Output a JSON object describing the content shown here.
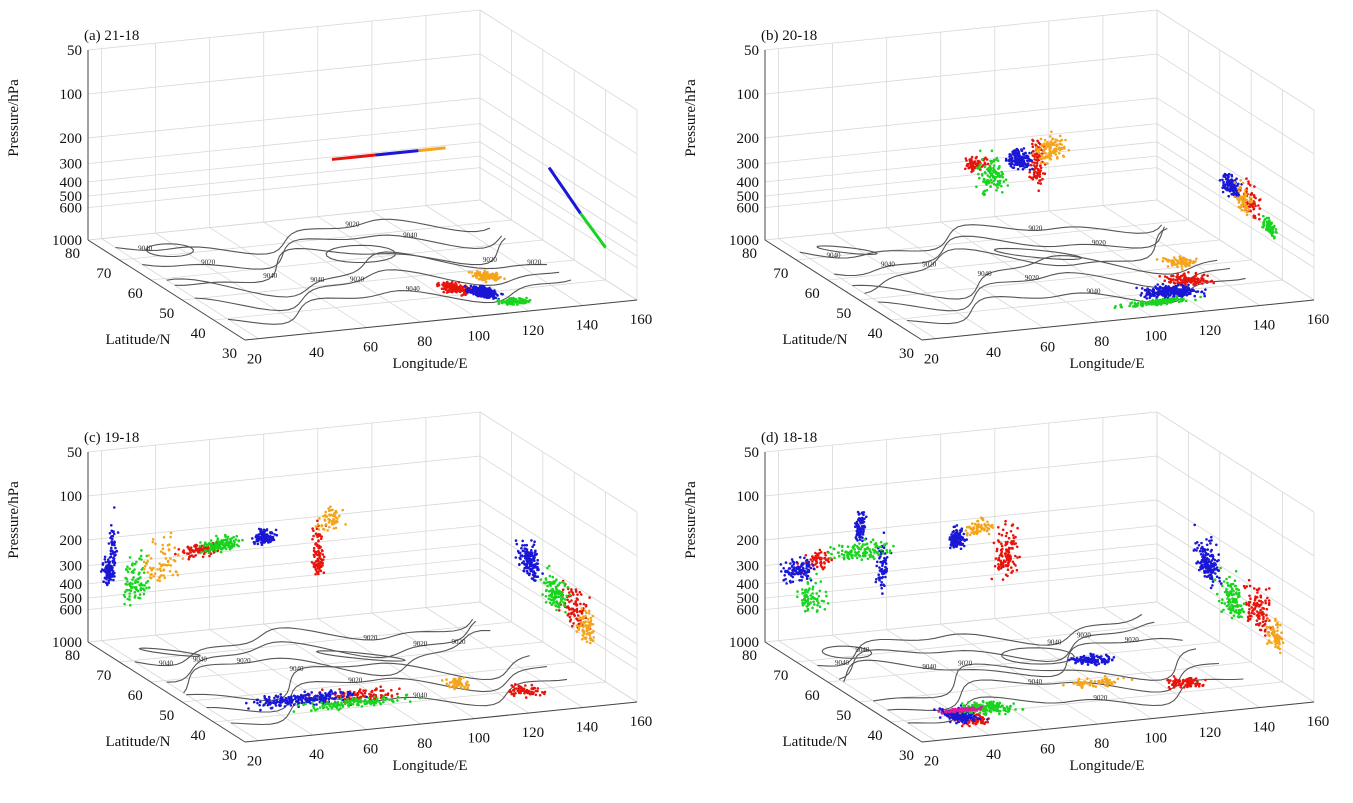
{
  "figure": {
    "title": ""
  },
  "chart_data": [
    {
      "type": "scatter",
      "title": "(a) 21-18",
      "xlabel": "Longitude/E",
      "ylabel": "Latitude/N",
      "zlabel": "Pressure/hPa",
      "xticks": [
        "20",
        "40",
        "60",
        "80",
        "100",
        "120",
        "140",
        "160"
      ],
      "yticks": [
        "80",
        "70",
        "60",
        "50",
        "40",
        "30"
      ],
      "zticks": [
        "50",
        "100",
        "200",
        "300",
        "400",
        "500",
        "600",
        "1000"
      ],
      "xlim": [
        15,
        160
      ],
      "ylim": [
        30,
        80
      ],
      "zlim": [
        1000,
        50
      ],
      "contour_labels": [
        "9040",
        "9020",
        "9040",
        "9040",
        "9020",
        "9040",
        "9020",
        "9040",
        "9020",
        "9020"
      ],
      "series": [
        {
          "name": "red",
          "color": "#e8140c",
          "clusters": [
            {
              "lon": 108,
              "lat": 43,
              "p": 1000,
              "n": 160,
              "spread": [
                6,
                4,
                0
              ]
            }
          ],
          "lines": [
            {
              "from": [
                82,
                60,
                200
              ],
              "to": [
                98,
                60,
                200
              ]
            }
          ]
        },
        {
          "name": "blue",
          "color": "#1a17d6",
          "clusters": [
            {
              "lon": 115,
              "lat": 40,
              "p": 1000,
              "n": 260,
              "spread": [
                6,
                4,
                0
              ]
            }
          ],
          "lines": [
            {
              "from": [
                98,
                60,
                200
              ],
              "to": [
                114,
                60,
                200
              ]
            },
            {
              "from": [
                160,
                58,
                300
              ],
              "to": [
                160,
                48,
                450
              ]
            }
          ]
        },
        {
          "name": "green",
          "color": "#18d41e",
          "clusters": [
            {
              "lon": 120,
              "lat": 35,
              "p": 1000,
              "n": 120,
              "spread": [
                7,
                2,
                0
              ]
            }
          ],
          "lines": [
            {
              "from": [
                160,
                48,
                450
              ],
              "to": [
                160,
                40,
                600
              ]
            }
          ]
        },
        {
          "name": "orange",
          "color": "#f4a51c",
          "clusters": [
            {
              "lon": 124,
              "lat": 47,
              "p": 1000,
              "n": 130,
              "spread": [
                6,
                3,
                0
              ]
            }
          ],
          "lines": [
            {
              "from": [
                114,
                60,
                200
              ],
              "to": [
                124,
                60,
                200
              ]
            }
          ]
        }
      ]
    },
    {
      "type": "scatter",
      "title": "(b) 20-18",
      "xlabel": "Longitude/E",
      "ylabel": "Latitude/N",
      "zlabel": "Pressure/hPa",
      "xticks": [
        "20",
        "40",
        "60",
        "80",
        "100",
        "120",
        "140",
        "160"
      ],
      "yticks": [
        "80",
        "70",
        "60",
        "50",
        "40",
        "30"
      ],
      "zticks": [
        "50",
        "100",
        "200",
        "300",
        "400",
        "500",
        "600",
        "1000"
      ],
      "xlim": [
        15,
        160
      ],
      "ylim": [
        30,
        80
      ],
      "zlim": [
        1000,
        50
      ],
      "contour_labels": [
        "9040",
        "9040",
        "9020",
        "9040",
        "9020",
        "9040",
        "9020",
        "9020"
      ],
      "series": [
        {
          "name": "red",
          "color": "#e8140c",
          "clusters": [
            {
              "lon": 72,
              "lat": 62,
              "p": 220,
              "n": 80,
              "spread": [
                6,
                2,
                30
              ]
            },
            {
              "lon": 95,
              "lat": 62,
              "p": 250,
              "n": 90,
              "spread": [
                3,
                2,
                150
              ]
            },
            {
              "lon": 130,
              "lat": 44,
              "p": 1000,
              "n": 120,
              "spread": [
                10,
                4,
                0
              ]
            },
            {
              "lon": 160,
              "lat": 50,
              "p": 400,
              "n": 70,
              "spread": [
                2,
                4,
                150
              ]
            }
          ]
        },
        {
          "name": "blue",
          "color": "#1a17d6",
          "clusters": [
            {
              "lon": 88,
              "lat": 62,
              "p": 220,
              "n": 160,
              "spread": [
                6,
                2,
                50
              ]
            },
            {
              "lon": 118,
              "lat": 40,
              "p": 1000,
              "n": 240,
              "spread": [
                14,
                4,
                0
              ]
            },
            {
              "lon": 160,
              "lat": 56,
              "p": 380,
              "n": 120,
              "spread": [
                2,
                4,
                90
              ]
            }
          ]
        },
        {
          "name": "green",
          "color": "#18d41e",
          "clusters": [
            {
              "lon": 78,
              "lat": 62,
              "p": 280,
              "n": 110,
              "spread": [
                8,
                2,
                120
              ]
            },
            {
              "lon": 108,
              "lat": 36,
              "p": 1000,
              "n": 120,
              "spread": [
                18,
                2,
                0
              ]
            },
            {
              "lon": 160,
              "lat": 44,
              "p": 500,
              "n": 70,
              "spread": [
                2,
                3,
                80
              ]
            }
          ]
        },
        {
          "name": "orange",
          "color": "#f4a51c",
          "clusters": [
            {
              "lon": 100,
              "lat": 62,
              "p": 200,
              "n": 110,
              "spread": [
                8,
                2,
                60
              ]
            },
            {
              "lon": 136,
              "lat": 52,
              "p": 1000,
              "n": 80,
              "spread": [
                8,
                4,
                0
              ]
            },
            {
              "lon": 160,
              "lat": 52,
              "p": 420,
              "n": 60,
              "spread": [
                2,
                4,
                120
              ]
            }
          ]
        }
      ]
    },
    {
      "type": "scatter",
      "title": "(c) 19-18",
      "xlabel": "Longitude/E",
      "ylabel": "Latitude/N",
      "zlabel": "Pressure/hPa",
      "xticks": [
        "20",
        "40",
        "60",
        "80",
        "100",
        "120",
        "140",
        "160"
      ],
      "yticks": [
        "80",
        "70",
        "60",
        "50",
        "40",
        "30"
      ],
      "zticks": [
        "50",
        "100",
        "200",
        "300",
        "400",
        "500",
        "600",
        "1000"
      ],
      "xlim": [
        15,
        160
      ],
      "ylim": [
        30,
        80
      ],
      "zlim": [
        1000,
        50
      ],
      "contour_labels": [
        "9040",
        "9040",
        "9020",
        "9040",
        "9020",
        "9040",
        "9020",
        "9020",
        "9020"
      ],
      "series": [
        {
          "name": "red",
          "color": "#e8140c",
          "clusters": [
            {
              "lon": 55,
              "lat": 78,
              "p": 260,
              "n": 110,
              "spread": [
                12,
                1,
                40
              ]
            },
            {
              "lon": 98,
              "lat": 78,
              "p": 350,
              "n": 90,
              "spread": [
                3,
                1,
                200
              ]
            },
            {
              "lon": 75,
              "lat": 45,
              "p": 1000,
              "n": 110,
              "spread": [
                20,
                5,
                0
              ]
            },
            {
              "lon": 130,
              "lat": 40,
              "p": 1000,
              "n": 70,
              "spread": [
                8,
                4,
                0
              ]
            },
            {
              "lon": 160,
              "lat": 50,
              "p": 420,
              "n": 90,
              "spread": [
                2,
                6,
                200
              ]
            }
          ]
        },
        {
          "name": "blue",
          "color": "#1a17d6",
          "clusters": [
            {
              "lon": 20,
              "lat": 78,
              "p": 320,
              "n": 110,
              "spread": [
                3,
                1,
                90
              ]
            },
            {
              "lon": 22,
              "lat": 78,
              "p": 200,
              "n": 40,
              "spread": [
                2,
                1,
                100
              ]
            },
            {
              "lon": 78,
              "lat": 78,
              "p": 240,
              "n": 130,
              "spread": [
                6,
                1,
                40
              ]
            },
            {
              "lon": 55,
              "lat": 46,
              "p": 1000,
              "n": 230,
              "spread": [
                26,
                4,
                0
              ]
            },
            {
              "lon": 160,
              "lat": 64,
              "p": 320,
              "n": 160,
              "spread": [
                2,
                5,
                120
              ]
            }
          ]
        },
        {
          "name": "green",
          "color": "#18d41e",
          "clusters": [
            {
              "lon": 62,
              "lat": 78,
              "p": 250,
              "n": 120,
              "spread": [
                10,
                1,
                40
              ]
            },
            {
              "lon": 30,
              "lat": 78,
              "p": 400,
              "n": 90,
              "spread": [
                8,
                1,
                200
              ]
            },
            {
              "lon": 70,
              "lat": 42,
              "p": 1000,
              "n": 130,
              "spread": [
                26,
                3,
                0
              ]
            },
            {
              "lon": 160,
              "lat": 56,
              "p": 400,
              "n": 110,
              "spread": [
                2,
                6,
                150
              ]
            }
          ]
        },
        {
          "name": "orange",
          "color": "#f4a51c",
          "clusters": [
            {
              "lon": 40,
              "lat": 78,
              "p": 300,
              "n": 70,
              "spread": [
                10,
                1,
                150
              ]
            },
            {
              "lon": 102,
              "lat": 78,
              "p": 200,
              "n": 60,
              "spread": [
                6,
                1,
                50
              ]
            },
            {
              "lon": 112,
              "lat": 46,
              "p": 1000,
              "n": 60,
              "spread": [
                6,
                4,
                0
              ]
            },
            {
              "lon": 160,
              "lat": 46,
              "p": 520,
              "n": 80,
              "spread": [
                2,
                4,
                200
              ]
            }
          ]
        }
      ]
    },
    {
      "type": "scatter",
      "title": "(d) 18-18",
      "xlabel": "Longitude/E",
      "ylabel": "Latitude/N",
      "zlabel": "Pressure/hPa",
      "xticks": [
        "20",
        "40",
        "60",
        "80",
        "100",
        "120",
        "140",
        "160"
      ],
      "yticks": [
        "80",
        "70",
        "60",
        "50",
        "40",
        "30"
      ],
      "zticks": [
        "50",
        "100",
        "200",
        "300",
        "400",
        "500",
        "600",
        "1000"
      ],
      "xlim": [
        15,
        160
      ],
      "ylim": [
        30,
        80
      ],
      "zlim": [
        1000,
        50
      ],
      "contour_labels": [
        "9040",
        "9040",
        "9040",
        "9020",
        "9040",
        "9020",
        "9040",
        "9020",
        "9020"
      ],
      "series": [
        {
          "name": "red",
          "color": "#e8140c",
          "clusters": [
            {
              "lon": 32,
              "lat": 78,
              "p": 280,
              "n": 60,
              "spread": [
                8,
                1,
                60
              ]
            },
            {
              "lon": 102,
              "lat": 78,
              "p": 350,
              "n": 120,
              "spread": [
                6,
                1,
                200
              ]
            },
            {
              "lon": 42,
              "lat": 38,
              "p": 1000,
              "n": 100,
              "spread": [
                8,
                4,
                0
              ]
            },
            {
              "lon": 128,
              "lat": 44,
              "p": 1000,
              "n": 90,
              "spread": [
                10,
                4,
                0
              ]
            },
            {
              "lon": 160,
              "lat": 48,
              "p": 420,
              "n": 110,
              "spread": [
                2,
                6,
                200
              ]
            }
          ]
        },
        {
          "name": "blue",
          "color": "#1a17d6",
          "clusters": [
            {
              "lon": 25,
              "lat": 78,
              "p": 320,
              "n": 120,
              "spread": [
                8,
                1,
                80
              ]
            },
            {
              "lon": 48,
              "lat": 78,
              "p": 180,
              "n": 80,
              "spread": [
                3,
                1,
                60
              ]
            },
            {
              "lon": 56,
              "lat": 78,
              "p": 350,
              "n": 70,
              "spread": [
                3,
                1,
                200
              ]
            },
            {
              "lon": 84,
              "lat": 78,
              "p": 250,
              "n": 110,
              "spread": [
                4,
                1,
                60
              ]
            },
            {
              "lon": 40,
              "lat": 40,
              "p": 1000,
              "n": 150,
              "spread": [
                8,
                5,
                0
              ]
            },
            {
              "lon": 110,
              "lat": 58,
              "p": 1000,
              "n": 130,
              "spread": [
                10,
                3,
                0
              ]
            },
            {
              "lon": 160,
              "lat": 64,
              "p": 320,
              "n": 170,
              "spread": [
                2,
                6,
                140
              ]
            }
          ]
        },
        {
          "name": "green",
          "color": "#18d41e",
          "clusters": [
            {
              "lon": 48,
              "lat": 78,
              "p": 260,
              "n": 120,
              "spread": [
                16,
                1,
                50
              ]
            },
            {
              "lon": 30,
              "lat": 78,
              "p": 500,
              "n": 70,
              "spread": [
                8,
                1,
                200
              ]
            },
            {
              "lon": 52,
              "lat": 42,
              "p": 1000,
              "n": 150,
              "spread": [
                14,
                4,
                0
              ]
            },
            {
              "lon": 160,
              "lat": 56,
              "p": 450,
              "n": 120,
              "spread": [
                2,
                6,
                200
              ]
            }
          ]
        },
        {
          "name": "orange",
          "color": "#f4a51c",
          "clusters": [
            {
              "lon": 92,
              "lat": 78,
              "p": 220,
              "n": 70,
              "spread": [
                8,
                1,
                40
              ]
            },
            {
              "lon": 100,
              "lat": 48,
              "p": 1000,
              "n": 70,
              "spread": [
                16,
                3,
                0
              ]
            },
            {
              "lon": 160,
              "lat": 42,
              "p": 520,
              "n": 80,
              "spread": [
                2,
                4,
                150
              ]
            }
          ]
        },
        {
          "name": "magenta",
          "color": "#e0189a",
          "clusters": [
            {
              "lon": 44,
              "lat": 42,
              "p": 1000,
              "n": 120,
              "spread": [
                10,
                1,
                0
              ]
            }
          ]
        }
      ]
    }
  ]
}
